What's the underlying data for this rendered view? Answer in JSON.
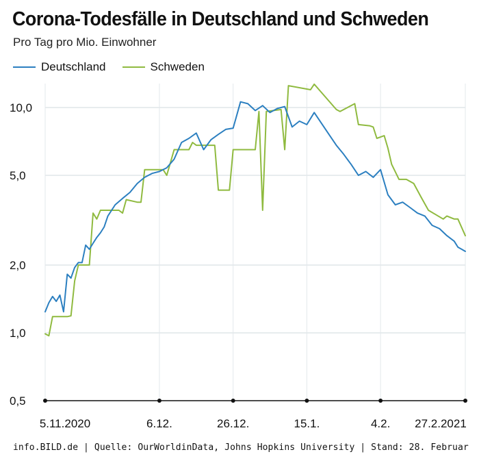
{
  "header": {
    "title": "Corona-Todesfälle in Deutschland und Schweden",
    "subtitle": "Pro Tag pro Mio. Einwohner"
  },
  "legend": [
    {
      "label": "Deutschland",
      "color": "#2b7fc0"
    },
    {
      "label": "Schweden",
      "color": "#8fba3f"
    }
  ],
  "source": "info.BILD.de | Quelle: OurWorldinData, Johns Hopkins University | Stand: 28. Februar",
  "chart_data": {
    "type": "line",
    "title": "Corona-Todesfälle in Deutschland und Schweden",
    "subtitle": "Pro Tag pro Mio. Einwohner",
    "y_scale": "log",
    "ylim": [
      0.5,
      14
    ],
    "y_ticks": [
      0.5,
      1.0,
      2.0,
      5.0,
      10.0
    ],
    "y_tick_labels": [
      "0,5",
      "1,0",
      "2,0",
      "5,0",
      "10,0"
    ],
    "x_range": [
      "2020-11-05",
      "2021-02-27"
    ],
    "x_ticks": [
      "2020-11-05",
      "2020-12-06",
      "2020-12-26",
      "2021-01-15",
      "2021-02-04",
      "2021-02-27"
    ],
    "x_tick_labels": [
      "5.11.2020",
      "6.12.",
      "26.12.",
      "15.1.",
      "4.2.",
      "27.2.2021"
    ],
    "grid": true,
    "legend_position": "top-left",
    "series": [
      {
        "name": "Deutschland",
        "color": "#2b7fc0",
        "x": [
          "2020-11-05",
          "2020-11-06",
          "2020-11-07",
          "2020-11-08",
          "2020-11-09",
          "2020-11-10",
          "2020-11-11",
          "2020-11-12",
          "2020-11-13",
          "2020-11-14",
          "2020-11-15",
          "2020-11-16",
          "2020-11-17",
          "2020-11-18",
          "2020-11-19",
          "2020-11-20",
          "2020-11-21",
          "2020-11-22",
          "2020-11-24",
          "2020-11-26",
          "2020-11-28",
          "2020-11-30",
          "2020-12-02",
          "2020-12-04",
          "2020-12-06",
          "2020-12-08",
          "2020-12-10",
          "2020-12-12",
          "2020-12-14",
          "2020-12-16",
          "2020-12-18",
          "2020-12-20",
          "2020-12-22",
          "2020-12-24",
          "2020-12-26",
          "2020-12-28",
          "2020-12-30",
          "2021-01-01",
          "2021-01-03",
          "2021-01-05",
          "2021-01-07",
          "2021-01-09",
          "2021-01-11",
          "2021-01-13",
          "2021-01-15",
          "2021-01-17",
          "2021-01-19",
          "2021-01-21",
          "2021-01-23",
          "2021-01-25",
          "2021-01-27",
          "2021-01-29",
          "2021-01-31",
          "2021-02-02",
          "2021-02-04",
          "2021-02-06",
          "2021-02-08",
          "2021-02-10",
          "2021-02-12",
          "2021-02-14",
          "2021-02-16",
          "2021-02-18",
          "2021-02-20",
          "2021-02-22",
          "2021-02-24",
          "2021-02-25",
          "2021-02-26",
          "2021-02-27"
        ],
        "values": [
          1.24,
          1.36,
          1.45,
          1.38,
          1.47,
          1.24,
          1.82,
          1.75,
          1.95,
          2.05,
          2.05,
          2.45,
          2.35,
          2.5,
          2.65,
          2.78,
          2.95,
          3.3,
          3.7,
          3.95,
          4.2,
          4.6,
          4.9,
          5.1,
          5.2,
          5.4,
          5.9,
          7.0,
          7.3,
          7.7,
          6.5,
          7.2,
          7.6,
          8.0,
          8.1,
          10.6,
          10.4,
          9.7,
          10.2,
          9.5,
          9.9,
          10.1,
          8.2,
          8.7,
          8.4,
          9.5,
          8.5,
          7.6,
          6.8,
          6.2,
          5.6,
          5.0,
          5.2,
          4.9,
          5.3,
          4.1,
          3.7,
          3.8,
          3.6,
          3.4,
          3.3,
          3.0,
          2.9,
          2.7,
          2.55,
          2.4,
          2.35,
          2.3
        ]
      },
      {
        "name": "Schweden",
        "color": "#8fba3f",
        "x": [
          "2020-11-05",
          "2020-11-06",
          "2020-11-07",
          "2020-11-11",
          "2020-11-12",
          "2020-11-13",
          "2020-11-14",
          "2020-11-15",
          "2020-11-17",
          "2020-11-18",
          "2020-11-19",
          "2020-11-20",
          "2020-11-25",
          "2020-11-26",
          "2020-11-27",
          "2020-11-30",
          "2020-12-01",
          "2020-12-02",
          "2020-12-07",
          "2020-12-08",
          "2020-12-10",
          "2020-12-14",
          "2020-12-15",
          "2020-12-16",
          "2020-12-21",
          "2020-12-22",
          "2020-12-25",
          "2020-12-26",
          "2021-01-01",
          "2021-01-02",
          "2021-01-03",
          "2021-01-04",
          "2021-01-08",
          "2021-01-09",
          "2021-01-10",
          "2021-01-16",
          "2021-01-17",
          "2021-01-23",
          "2021-01-24",
          "2021-01-28",
          "2021-01-29",
          "2021-02-01",
          "2021-02-02",
          "2021-02-03",
          "2021-02-05",
          "2021-02-06",
          "2021-02-07",
          "2021-02-09",
          "2021-02-11",
          "2021-02-13",
          "2021-02-15",
          "2021-02-17",
          "2021-02-21",
          "2021-02-22",
          "2021-02-24",
          "2021-02-25",
          "2021-02-27"
        ],
        "values": [
          0.99,
          0.97,
          1.18,
          1.18,
          1.19,
          1.7,
          2.0,
          2.0,
          2.0,
          3.4,
          3.2,
          3.5,
          3.5,
          3.4,
          3.9,
          3.8,
          3.8,
          5.3,
          5.3,
          5.0,
          6.5,
          6.5,
          7.0,
          6.8,
          6.8,
          4.3,
          4.3,
          6.5,
          6.5,
          9.6,
          3.5,
          9.6,
          9.8,
          6.5,
          12.5,
          12.0,
          12.7,
          9.8,
          9.6,
          10.4,
          8.4,
          8.3,
          8.2,
          7.3,
          7.5,
          6.6,
          5.6,
          4.8,
          4.8,
          4.6,
          4.0,
          3.5,
          3.2,
          3.3,
          3.2,
          3.2,
          2.7
        ]
      }
    ]
  }
}
